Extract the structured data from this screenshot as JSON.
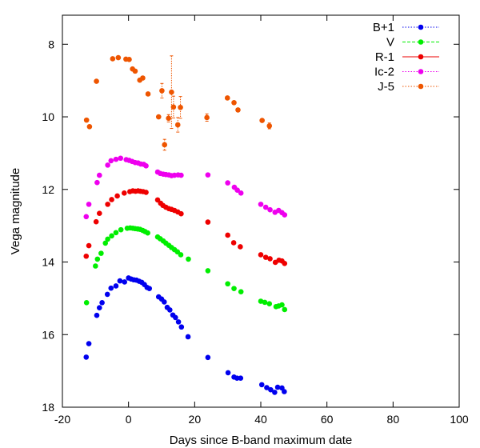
{
  "chart_data": {
    "type": "scatter",
    "xlabel": "Days since B-band maximum date",
    "ylabel": "Vega magnitude",
    "xlim": [
      -20,
      100
    ],
    "ylim": [
      18,
      7.2
    ],
    "y_inverted": true,
    "grid": false,
    "legend_position": "top-right",
    "x_ticks": [
      "-20",
      "0",
      "20",
      "40",
      "60",
      "80",
      "100"
    ],
    "y_ticks": [
      "8",
      "10",
      "12",
      "14",
      "16",
      "18"
    ],
    "series": [
      {
        "name": "B+1",
        "color": "#0000ee",
        "line_style": "dotted",
        "points": [
          [
            -12.8,
            16.62
          ],
          [
            -12,
            16.25
          ],
          [
            -9.6,
            15.47
          ],
          [
            -8.8,
            15.26
          ],
          [
            -8,
            15.12
          ],
          [
            -6.4,
            14.89
          ],
          [
            -5.3,
            14.72
          ],
          [
            -3.8,
            14.66
          ],
          [
            -2.6,
            14.52
          ],
          [
            -1.2,
            14.55
          ],
          [
            0,
            14.44
          ],
          [
            0.8,
            14.47
          ],
          [
            1.6,
            14.49
          ],
          [
            2.4,
            14.5
          ],
          [
            3.2,
            14.53
          ],
          [
            4,
            14.56
          ],
          [
            4.8,
            14.62
          ],
          [
            5.6,
            14.7
          ],
          [
            6.3,
            14.73
          ],
          [
            9.1,
            14.96
          ],
          [
            10,
            15.02
          ],
          [
            10.8,
            15.1
          ],
          [
            11.7,
            15.25
          ],
          [
            12.5,
            15.32
          ],
          [
            13.4,
            15.46
          ],
          [
            14.2,
            15.53
          ],
          [
            15.1,
            15.65
          ],
          [
            16,
            15.79
          ],
          [
            18,
            16.06
          ],
          [
            24,
            16.63
          ],
          [
            30.1,
            17.05
          ],
          [
            31.9,
            17.17
          ],
          [
            32.8,
            17.2
          ],
          [
            33.9,
            17.2
          ],
          [
            40.3,
            17.38
          ],
          [
            41.8,
            17.46
          ],
          [
            43,
            17.52
          ],
          [
            44.2,
            17.59
          ],
          [
            45.1,
            17.45
          ],
          [
            46.4,
            17.47
          ],
          [
            47.1,
            17.57
          ]
        ]
      },
      {
        "name": "V",
        "color": "#00ee00",
        "line_style": "dashed",
        "points": [
          [
            -12.7,
            15.12
          ],
          [
            -10,
            14.11
          ],
          [
            -9.4,
            13.92
          ],
          [
            -8.3,
            13.76
          ],
          [
            -7,
            13.48
          ],
          [
            -6.3,
            13.37
          ],
          [
            -5.1,
            13.28
          ],
          [
            -3.8,
            13.19
          ],
          [
            -2.3,
            13.11
          ],
          [
            -0.4,
            13.07
          ],
          [
            0.5,
            13.06
          ],
          [
            1.3,
            13.07
          ],
          [
            2,
            13.08
          ],
          [
            2.8,
            13.09
          ],
          [
            3.5,
            13.1
          ],
          [
            4.3,
            13.13
          ],
          [
            5,
            13.16
          ],
          [
            5.8,
            13.2
          ],
          [
            8.8,
            13.31
          ],
          [
            9.6,
            13.36
          ],
          [
            10.5,
            13.42
          ],
          [
            11.3,
            13.48
          ],
          [
            12.2,
            13.54
          ],
          [
            13,
            13.6
          ],
          [
            13.9,
            13.66
          ],
          [
            14.8,
            13.72
          ],
          [
            15.8,
            13.8
          ],
          [
            18.1,
            13.92
          ],
          [
            24,
            14.24
          ],
          [
            30,
            14.6
          ],
          [
            31.9,
            14.73
          ],
          [
            34,
            14.82
          ],
          [
            40,
            15.08
          ],
          [
            41.2,
            15.11
          ],
          [
            42.6,
            15.15
          ],
          [
            44.6,
            15.23
          ],
          [
            45.4,
            15.21
          ],
          [
            46.4,
            15.18
          ],
          [
            47.2,
            15.31
          ]
        ]
      },
      {
        "name": "R-1",
        "color": "#ee0000",
        "line_style": "solid",
        "points": [
          [
            -12.8,
            13.84
          ],
          [
            -12,
            13.55
          ],
          [
            -9.8,
            12.89
          ],
          [
            -8.8,
            12.66
          ],
          [
            -6.3,
            12.41
          ],
          [
            -5.1,
            12.28
          ],
          [
            -3.4,
            12.18
          ],
          [
            -1.3,
            12.1
          ],
          [
            0.4,
            12.06
          ],
          [
            1.3,
            12.04
          ],
          [
            2.1,
            12.05
          ],
          [
            2.9,
            12.04
          ],
          [
            3.6,
            12.05
          ],
          [
            4.4,
            12.06
          ],
          [
            5.3,
            12.08
          ],
          [
            8.8,
            12.29
          ],
          [
            9.7,
            12.38
          ],
          [
            10.4,
            12.44
          ],
          [
            11.3,
            12.49
          ],
          [
            12.2,
            12.53
          ],
          [
            13,
            12.55
          ],
          [
            13.9,
            12.58
          ],
          [
            14.9,
            12.62
          ],
          [
            15.9,
            12.67
          ],
          [
            24,
            12.9
          ],
          [
            30,
            13.26
          ],
          [
            31.8,
            13.47
          ],
          [
            33.8,
            13.58
          ],
          [
            40,
            13.8
          ],
          [
            41.5,
            13.87
          ],
          [
            42.8,
            13.91
          ],
          [
            44.4,
            14.01
          ],
          [
            45.5,
            13.95
          ],
          [
            46.4,
            13.97
          ],
          [
            47.2,
            14.04
          ]
        ]
      },
      {
        "name": "Ic-2",
        "color": "#ee00ee",
        "line_style": "dotted",
        "points": [
          [
            -12.8,
            12.75
          ],
          [
            -12,
            12.41
          ],
          [
            -9.5,
            11.81
          ],
          [
            -8.8,
            11.61
          ],
          [
            -6.3,
            11.33
          ],
          [
            -5.3,
            11.21
          ],
          [
            -3.8,
            11.17
          ],
          [
            -2.4,
            11.14
          ],
          [
            -0.7,
            11.18
          ],
          [
            0.2,
            11.2
          ],
          [
            1.1,
            11.23
          ],
          [
            2,
            11.26
          ],
          [
            2.9,
            11.27
          ],
          [
            3.7,
            11.3
          ],
          [
            4.6,
            11.31
          ],
          [
            5.3,
            11.35
          ],
          [
            8.8,
            11.52
          ],
          [
            9.6,
            11.56
          ],
          [
            10.5,
            11.58
          ],
          [
            11.3,
            11.59
          ],
          [
            12.2,
            11.6
          ],
          [
            13,
            11.62
          ],
          [
            13.9,
            11.61
          ],
          [
            15,
            11.6
          ],
          [
            15.9,
            11.61
          ],
          [
            24,
            11.6
          ],
          [
            30,
            11.82
          ],
          [
            32,
            11.94
          ],
          [
            32.9,
            12.02
          ],
          [
            34,
            12.1
          ],
          [
            40,
            12.41
          ],
          [
            41.5,
            12.49
          ],
          [
            42.8,
            12.56
          ],
          [
            44.3,
            12.63
          ],
          [
            45.4,
            12.58
          ],
          [
            46.4,
            12.64
          ],
          [
            47.2,
            12.7
          ]
        ]
      },
      {
        "name": "J-5",
        "color": "#ee5500",
        "line_style": "dotted",
        "points": [
          [
            -12.7,
            10.09,
            0.05
          ],
          [
            -11.8,
            10.27,
            0.05
          ],
          [
            -9.7,
            9.02,
            0.05
          ],
          [
            -4.8,
            8.4,
            0.05
          ],
          [
            -3.1,
            8.37,
            0.05
          ],
          [
            -0.8,
            8.41,
            0.05
          ],
          [
            0.2,
            8.42,
            0.05
          ],
          [
            1.2,
            8.68,
            0.05
          ],
          [
            2,
            8.74,
            0.05
          ],
          [
            3.4,
            8.99,
            0.05
          ],
          [
            4.3,
            8.93,
            0.05
          ],
          [
            5.9,
            9.37,
            0.05
          ],
          [
            9.1,
            10,
            0.05
          ],
          [
            10.1,
            9.28,
            0.2
          ],
          [
            10.9,
            10.77,
            0.15
          ],
          [
            12.1,
            10.04,
            0.1
          ],
          [
            13,
            9.32,
            1.0
          ],
          [
            13.6,
            9.73,
            0.3
          ],
          [
            14.9,
            10.22,
            0.2
          ],
          [
            15.7,
            9.74,
            0.3
          ],
          [
            23.7,
            10.02,
            0.1
          ],
          [
            29.9,
            9.48,
            0.05
          ],
          [
            31.9,
            9.61,
            0.05
          ],
          [
            33.1,
            9.81,
            0.05
          ],
          [
            40.4,
            10.1,
            0.05
          ],
          [
            42.6,
            10.25,
            0.08
          ]
        ]
      }
    ]
  }
}
